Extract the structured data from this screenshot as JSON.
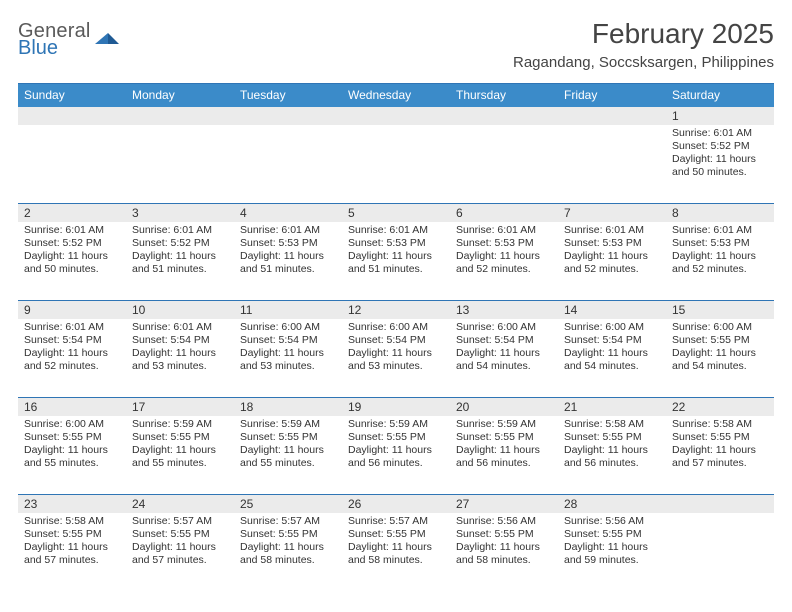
{
  "logo": {
    "word1": "General",
    "word2": "Blue",
    "icon_color": "#2f75b5",
    "text_gray": "#5a5a5a"
  },
  "title": "February 2025",
  "subtitle": "Ragandang, Soccsksargen, Philippines",
  "colors": {
    "header_bg": "#3b8bc9",
    "border": "#2f75b5",
    "daynum_bg": "#ebebeb",
    "text": "#333333",
    "background": "#ffffff"
  },
  "fonts": {
    "title_size": 28,
    "subtitle_size": 15,
    "dayhead_size": 12,
    "daynum_size": 12,
    "cell_size": 10.5
  },
  "day_headers": [
    "Sunday",
    "Monday",
    "Tuesday",
    "Wednesday",
    "Thursday",
    "Friday",
    "Saturday"
  ],
  "weeks": [
    [
      {
        "n": "",
        "lines": []
      },
      {
        "n": "",
        "lines": []
      },
      {
        "n": "",
        "lines": []
      },
      {
        "n": "",
        "lines": []
      },
      {
        "n": "",
        "lines": []
      },
      {
        "n": "",
        "lines": []
      },
      {
        "n": "1",
        "lines": [
          "Sunrise: 6:01 AM",
          "Sunset: 5:52 PM",
          "Daylight: 11 hours and 50 minutes."
        ]
      }
    ],
    [
      {
        "n": "2",
        "lines": [
          "Sunrise: 6:01 AM",
          "Sunset: 5:52 PM",
          "Daylight: 11 hours and 50 minutes."
        ]
      },
      {
        "n": "3",
        "lines": [
          "Sunrise: 6:01 AM",
          "Sunset: 5:52 PM",
          "Daylight: 11 hours and 51 minutes."
        ]
      },
      {
        "n": "4",
        "lines": [
          "Sunrise: 6:01 AM",
          "Sunset: 5:53 PM",
          "Daylight: 11 hours and 51 minutes."
        ]
      },
      {
        "n": "5",
        "lines": [
          "Sunrise: 6:01 AM",
          "Sunset: 5:53 PM",
          "Daylight: 11 hours and 51 minutes."
        ]
      },
      {
        "n": "6",
        "lines": [
          "Sunrise: 6:01 AM",
          "Sunset: 5:53 PM",
          "Daylight: 11 hours and 52 minutes."
        ]
      },
      {
        "n": "7",
        "lines": [
          "Sunrise: 6:01 AM",
          "Sunset: 5:53 PM",
          "Daylight: 11 hours and 52 minutes."
        ]
      },
      {
        "n": "8",
        "lines": [
          "Sunrise: 6:01 AM",
          "Sunset: 5:53 PM",
          "Daylight: 11 hours and 52 minutes."
        ]
      }
    ],
    [
      {
        "n": "9",
        "lines": [
          "Sunrise: 6:01 AM",
          "Sunset: 5:54 PM",
          "Daylight: 11 hours and 52 minutes."
        ]
      },
      {
        "n": "10",
        "lines": [
          "Sunrise: 6:01 AM",
          "Sunset: 5:54 PM",
          "Daylight: 11 hours and 53 minutes."
        ]
      },
      {
        "n": "11",
        "lines": [
          "Sunrise: 6:00 AM",
          "Sunset: 5:54 PM",
          "Daylight: 11 hours and 53 minutes."
        ]
      },
      {
        "n": "12",
        "lines": [
          "Sunrise: 6:00 AM",
          "Sunset: 5:54 PM",
          "Daylight: 11 hours and 53 minutes."
        ]
      },
      {
        "n": "13",
        "lines": [
          "Sunrise: 6:00 AM",
          "Sunset: 5:54 PM",
          "Daylight: 11 hours and 54 minutes."
        ]
      },
      {
        "n": "14",
        "lines": [
          "Sunrise: 6:00 AM",
          "Sunset: 5:54 PM",
          "Daylight: 11 hours and 54 minutes."
        ]
      },
      {
        "n": "15",
        "lines": [
          "Sunrise: 6:00 AM",
          "Sunset: 5:55 PM",
          "Daylight: 11 hours and 54 minutes."
        ]
      }
    ],
    [
      {
        "n": "16",
        "lines": [
          "Sunrise: 6:00 AM",
          "Sunset: 5:55 PM",
          "Daylight: 11 hours and 55 minutes."
        ]
      },
      {
        "n": "17",
        "lines": [
          "Sunrise: 5:59 AM",
          "Sunset: 5:55 PM",
          "Daylight: 11 hours and 55 minutes."
        ]
      },
      {
        "n": "18",
        "lines": [
          "Sunrise: 5:59 AM",
          "Sunset: 5:55 PM",
          "Daylight: 11 hours and 55 minutes."
        ]
      },
      {
        "n": "19",
        "lines": [
          "Sunrise: 5:59 AM",
          "Sunset: 5:55 PM",
          "Daylight: 11 hours and 56 minutes."
        ]
      },
      {
        "n": "20",
        "lines": [
          "Sunrise: 5:59 AM",
          "Sunset: 5:55 PM",
          "Daylight: 11 hours and 56 minutes."
        ]
      },
      {
        "n": "21",
        "lines": [
          "Sunrise: 5:58 AM",
          "Sunset: 5:55 PM",
          "Daylight: 11 hours and 56 minutes."
        ]
      },
      {
        "n": "22",
        "lines": [
          "Sunrise: 5:58 AM",
          "Sunset: 5:55 PM",
          "Daylight: 11 hours and 57 minutes."
        ]
      }
    ],
    [
      {
        "n": "23",
        "lines": [
          "Sunrise: 5:58 AM",
          "Sunset: 5:55 PM",
          "Daylight: 11 hours and 57 minutes."
        ]
      },
      {
        "n": "24",
        "lines": [
          "Sunrise: 5:57 AM",
          "Sunset: 5:55 PM",
          "Daylight: 11 hours and 57 minutes."
        ]
      },
      {
        "n": "25",
        "lines": [
          "Sunrise: 5:57 AM",
          "Sunset: 5:55 PM",
          "Daylight: 11 hours and 58 minutes."
        ]
      },
      {
        "n": "26",
        "lines": [
          "Sunrise: 5:57 AM",
          "Sunset: 5:55 PM",
          "Daylight: 11 hours and 58 minutes."
        ]
      },
      {
        "n": "27",
        "lines": [
          "Sunrise: 5:56 AM",
          "Sunset: 5:55 PM",
          "Daylight: 11 hours and 58 minutes."
        ]
      },
      {
        "n": "28",
        "lines": [
          "Sunrise: 5:56 AM",
          "Sunset: 5:55 PM",
          "Daylight: 11 hours and 59 minutes."
        ]
      },
      {
        "n": "",
        "lines": []
      }
    ]
  ]
}
